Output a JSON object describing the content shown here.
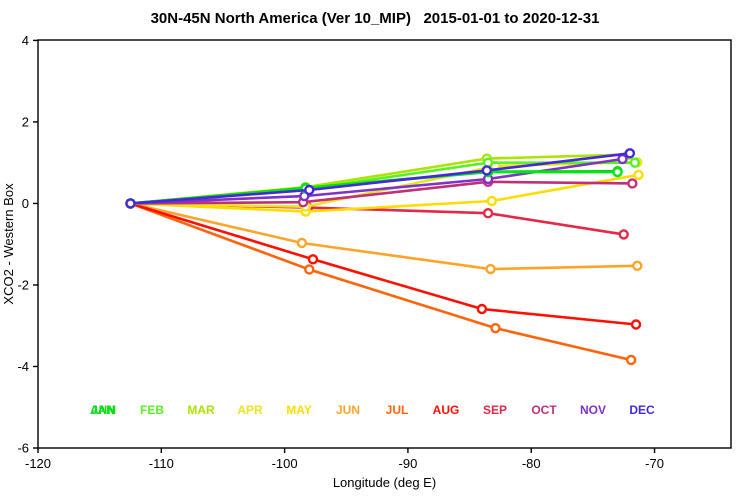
{
  "chart_data": {
    "type": "line",
    "title": "30N-45N North America (Ver 10_MIP)   2015-01-01 to 2020-12-31",
    "xlabel": "Longitude (deg E)",
    "ylabel": "XCO2 - Western Box",
    "xlim": [
      -120,
      -63.8
    ],
    "ylim": [
      -6,
      4.01
    ],
    "xticks": [
      -120,
      -110,
      -100,
      -90,
      -80,
      -70
    ],
    "yticks": [
      -6,
      -4,
      -2,
      0,
      2,
      4
    ],
    "grid": false,
    "marker": "open-circle",
    "legend_position": "inside-bottom-row",
    "series": [
      {
        "name": "JUN",
        "color": "#FFA428",
        "x": [
          -112.5,
          -98.6,
          -83.3,
          -71.4
        ],
        "y": [
          0,
          -0.97,
          -1.61,
          -1.53
        ]
      },
      {
        "name": "JUL",
        "color": "#FF640A",
        "x": [
          -112.5,
          -98.0,
          -82.9,
          -71.9
        ],
        "y": [
          0,
          -1.62,
          -3.06,
          -3.84
        ]
      },
      {
        "name": "AUG",
        "color": "#FF0F00",
        "x": [
          -112.5,
          -97.7,
          -84.0,
          -71.5
        ],
        "y": [
          0,
          -1.37,
          -2.59,
          -2.97
        ]
      },
      {
        "name": "SEP",
        "color": "#E62846",
        "x": [
          -112.5,
          -98.1,
          -83.5,
          -72.5
        ],
        "y": [
          0,
          -0.1,
          -0.24,
          -0.76
        ]
      },
      {
        "name": "MAY",
        "color": "#FFDC00",
        "x": [
          -112.5,
          -98.3,
          -83.2,
          -71.3
        ],
        "y": [
          0,
          -0.2,
          0.06,
          0.7
        ]
      },
      {
        "name": "APR",
        "color": "#EAE420",
        "x": [
          -112.5,
          -98.3,
          -82.9,
          -71.4
        ],
        "y": [
          0,
          -0.08,
          0.92,
          1.01
        ]
      },
      {
        "name": "MAR",
        "color": "#AAE400",
        "x": [
          -112.5,
          -98.3,
          -83.6,
          -72.1
        ],
        "y": [
          0,
          0.4,
          1.1,
          1.2
        ]
      },
      {
        "name": "FEB",
        "color": "#5AF028",
        "x": [
          -112.5,
          -98.3,
          -83.5,
          -71.6
        ],
        "y": [
          0,
          0.35,
          1.0,
          1.0
        ]
      },
      {
        "name": "OCT",
        "color": "#C03078",
        "x": [
          -112.5,
          -98.5,
          -83.5,
          -71.8
        ],
        "y": [
          0,
          0.03,
          0.53,
          0.49
        ]
      },
      {
        "name": "NOV",
        "color": "#7E32C8",
        "x": [
          -112.5,
          -98.4,
          -83.5,
          -72.6
        ],
        "y": [
          0,
          0.18,
          0.6,
          1.09
        ]
      },
      {
        "name": "JAN",
        "color": "#0ACC0A",
        "x": [
          -112.5,
          -98.3,
          -83.5,
          -73.0
        ],
        "y": [
          0,
          0.38,
          0.78,
          0.79
        ]
      },
      {
        "name": "ANN",
        "color": "#00E614",
        "x": [
          -112.5,
          -98.3,
          -83.5,
          -73.0
        ],
        "y": [
          0,
          0.37,
          0.77,
          0.77
        ]
      },
      {
        "name": "DEC",
        "color": "#4628DC",
        "x": [
          -112.5,
          -98.0,
          -83.6,
          -72.0
        ],
        "y": [
          0,
          0.33,
          0.81,
          1.23
        ]
      }
    ],
    "legend": [
      {
        "label": "JAN",
        "color": "#0ACC0A",
        "slot": 0
      },
      {
        "label": "ANN",
        "color": "#00E614",
        "slot": 0
      },
      {
        "label": "FEB",
        "color": "#5AF028",
        "slot": 1
      },
      {
        "label": "MAR",
        "color": "#AAE400",
        "slot": 2
      },
      {
        "label": "APR",
        "color": "#EAE420",
        "slot": 3
      },
      {
        "label": "MAY",
        "color": "#FFDC00",
        "slot": 4
      },
      {
        "label": "JUN",
        "color": "#FFA428",
        "slot": 5
      },
      {
        "label": "JUL",
        "color": "#FF640A",
        "slot": 6
      },
      {
        "label": "AUG",
        "color": "#FF0F00",
        "slot": 7
      },
      {
        "label": "SEP",
        "color": "#E62846",
        "slot": 8
      },
      {
        "label": "OCT",
        "color": "#C03078",
        "slot": 9
      },
      {
        "label": "NOV",
        "color": "#7E32C8",
        "slot": 10
      },
      {
        "label": "DEC",
        "color": "#4628DC",
        "slot": 11
      }
    ],
    "axis_color": "#000000",
    "background_color": "#ffffff"
  }
}
